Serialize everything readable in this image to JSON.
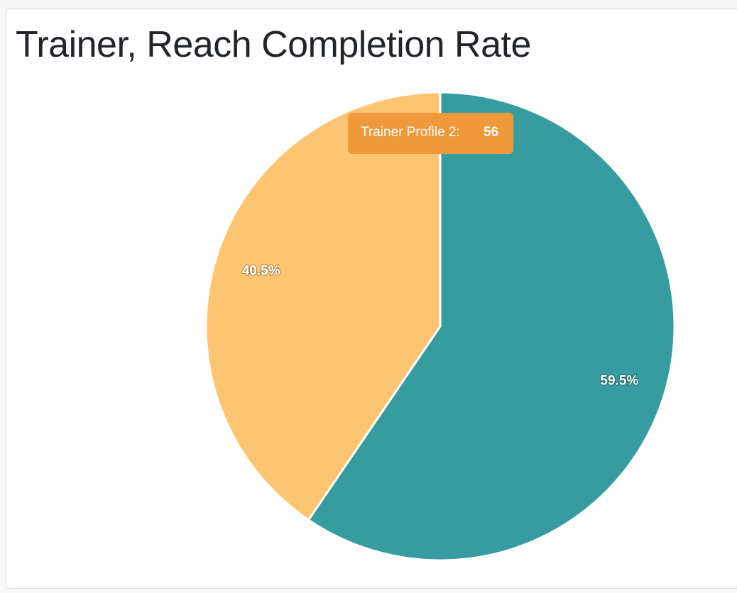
{
  "chart_data": {
    "type": "pie",
    "title": "Trainer, Reach Completion Rate",
    "values": [
      59.5,
      40.5
    ],
    "value_labels": [
      "59.5%",
      "40.5%"
    ],
    "colors": [
      "#369c9f",
      "#fdc571"
    ],
    "tooltip": {
      "label": "Trainer Profile 2:",
      "value": 56,
      "color": "#f0993a"
    }
  }
}
